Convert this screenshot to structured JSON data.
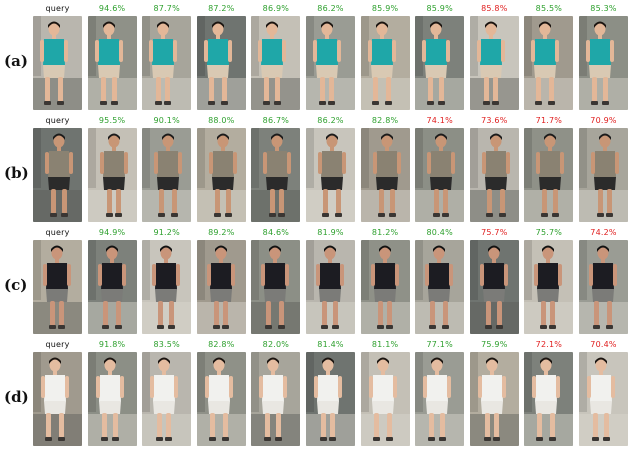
{
  "colors": {
    "query_text": "#111111",
    "correct_match": "#2ea02e",
    "wrong_match": "#e02020"
  },
  "rows": [
    {
      "label": "(a)",
      "scores": [
        {
          "text": "query",
          "status": "query"
        },
        {
          "text": "94.6%",
          "status": "correct"
        },
        {
          "text": "87.7%",
          "status": "correct"
        },
        {
          "text": "87.2%",
          "status": "correct"
        },
        {
          "text": "86.9%",
          "status": "correct"
        },
        {
          "text": "86.2%",
          "status": "correct"
        },
        {
          "text": "85.9%",
          "status": "correct"
        },
        {
          "text": "85.9%",
          "status": "correct"
        },
        {
          "text": "85.8%",
          "status": "wrong"
        },
        {
          "text": "85.5%",
          "status": "correct"
        },
        {
          "text": "85.3%",
          "status": "correct"
        }
      ]
    },
    {
      "label": "(b)",
      "scores": [
        {
          "text": "query",
          "status": "query"
        },
        {
          "text": "95.5%",
          "status": "correct"
        },
        {
          "text": "90.1%",
          "status": "correct"
        },
        {
          "text": "88.0%",
          "status": "correct"
        },
        {
          "text": "86.7%",
          "status": "correct"
        },
        {
          "text": "86.2%",
          "status": "correct"
        },
        {
          "text": "82.8%",
          "status": "correct"
        },
        {
          "text": "74.1%",
          "status": "wrong"
        },
        {
          "text": "73.6%",
          "status": "wrong"
        },
        {
          "text": "71.7%",
          "status": "wrong"
        },
        {
          "text": "70.9%",
          "status": "wrong"
        }
      ]
    },
    {
      "label": "(c)",
      "scores": [
        {
          "text": "query",
          "status": "query"
        },
        {
          "text": "94.9%",
          "status": "correct"
        },
        {
          "text": "91.2%",
          "status": "correct"
        },
        {
          "text": "89.2%",
          "status": "correct"
        },
        {
          "text": "84.6%",
          "status": "correct"
        },
        {
          "text": "81.9%",
          "status": "correct"
        },
        {
          "text": "81.2%",
          "status": "correct"
        },
        {
          "text": "80.4%",
          "status": "correct"
        },
        {
          "text": "75.7%",
          "status": "wrong"
        },
        {
          "text": "75.7%",
          "status": "correct"
        },
        {
          "text": "74.2%",
          "status": "wrong"
        }
      ]
    },
    {
      "label": "(d)",
      "scores": [
        {
          "text": "query",
          "status": "query"
        },
        {
          "text": "91.8%",
          "status": "correct"
        },
        {
          "text": "83.5%",
          "status": "correct"
        },
        {
          "text": "82.8%",
          "status": "correct"
        },
        {
          "text": "82.0%",
          "status": "correct"
        },
        {
          "text": "81.4%",
          "status": "correct"
        },
        {
          "text": "81.1%",
          "status": "correct"
        },
        {
          "text": "77.1%",
          "status": "correct"
        },
        {
          "text": "75.9%",
          "status": "correct"
        },
        {
          "text": "72.1%",
          "status": "wrong"
        },
        {
          "text": "70.4%",
          "status": "wrong"
        }
      ]
    }
  ],
  "appearance": {
    "a": {
      "top": "#1fa7a8",
      "bottom": "#d9c9b3",
      "skin": "#e3b798",
      "hair": "#1a1410"
    },
    "b": {
      "top": "#8a8272",
      "bottom": "#2b2b2b",
      "skin": "#c89676",
      "hair": "#1b1b1b"
    },
    "c": {
      "top": "#1c1c22",
      "bottom": "#7b7b78",
      "skin": "#c9957a",
      "hair": "#121212"
    },
    "d": {
      "top": "#f1f1ee",
      "bottom": "#e9e7e2",
      "skin": "#e4bca0",
      "hair": "#1a1410"
    }
  }
}
